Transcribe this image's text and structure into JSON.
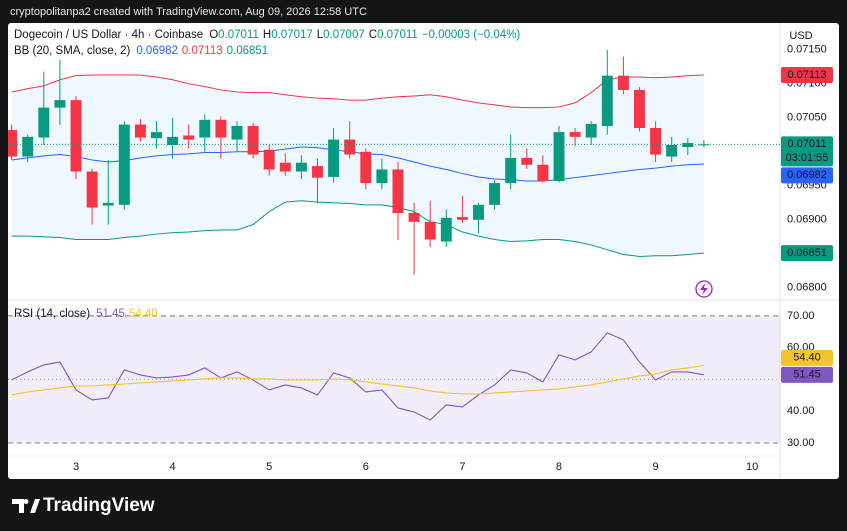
{
  "header": {
    "attribution": "cryptopolitanpa2 created with TradingView.com, Aug 09, 2026 12:58 UTC",
    "branding": "TradingView"
  },
  "chart_data": [
    {
      "type": "candlestick",
      "title": "Dogecoin / US Dollar · 4h · Coinbase",
      "ohlc_labels": [
        "O",
        "H",
        "L",
        "C"
      ],
      "change_label": "−0.00003 (−0.04%)",
      "currency": "USD",
      "countdown": "03:01:55",
      "up_color": "#089981",
      "down_color": "#f23645",
      "x": [
        2.3333,
        2.5,
        2.6667,
        2.8333,
        3,
        3.1667,
        3.3333,
        3.5,
        3.6667,
        3.8333,
        4,
        4.1667,
        4.3333,
        4.5,
        4.6667,
        4.8333,
        5,
        5.1667,
        5.3333,
        5.5,
        5.6667,
        5.8333,
        6,
        6.1667,
        6.3333,
        6.5,
        6.6667,
        6.8333,
        7,
        7.1667,
        7.3333,
        7.5,
        7.6667,
        7.8333,
        8,
        8.1667,
        8.3333,
        8.5,
        8.6667,
        8.8333,
        9,
        9.1667,
        9.3333,
        9.5
      ],
      "open": [
        0.07032,
        0.06993,
        0.07021,
        0.07065,
        0.07076,
        0.06971,
        0.06921,
        0.06922,
        0.0704,
        0.0702,
        0.0701,
        0.07024,
        0.07021,
        0.07047,
        0.07018,
        0.07038,
        0.07003,
        0.06984,
        0.06971,
        0.06979,
        0.06963,
        0.07018,
        0.07,
        0.06954,
        0.06974,
        0.0691,
        0.06897,
        0.06868,
        0.06904,
        0.069,
        0.06922,
        0.06954,
        0.06991,
        0.06981,
        0.06957,
        0.07029,
        0.07021,
        0.07038,
        0.07112,
        0.07091,
        0.07035,
        0.06993,
        0.07007,
        0.07011
      ],
      "high": [
        0.0704,
        0.07025,
        0.07118,
        0.07135,
        0.07082,
        0.06975,
        0.06988,
        0.07045,
        0.07048,
        0.07045,
        0.0705,
        0.0704,
        0.07055,
        0.07052,
        0.07045,
        0.07042,
        0.0701,
        0.06998,
        0.06995,
        0.0699,
        0.07035,
        0.07045,
        0.07005,
        0.0699,
        0.06985,
        0.06925,
        0.06928,
        0.06915,
        0.06935,
        0.06925,
        0.06958,
        0.07025,
        0.07005,
        0.06995,
        0.07038,
        0.07035,
        0.07045,
        0.0715,
        0.0714,
        0.07095,
        0.07045,
        0.07022,
        0.0702,
        0.07017
      ],
      "low": [
        0.06988,
        0.06985,
        0.0701,
        0.0704,
        0.0696,
        0.06893,
        0.06893,
        0.06915,
        0.07015,
        0.07005,
        0.0699,
        0.07005,
        0.07,
        0.0699,
        0.07,
        0.0699,
        0.06965,
        0.06965,
        0.0696,
        0.06925,
        0.06955,
        0.0699,
        0.06945,
        0.06945,
        0.0687,
        0.06819,
        0.0686,
        0.0686,
        0.06895,
        0.0688,
        0.06915,
        0.06945,
        0.06975,
        0.06955,
        0.06955,
        0.07008,
        0.0701,
        0.07025,
        0.07085,
        0.0703,
        0.06985,
        0.06985,
        0.06995,
        0.07007
      ],
      "close": [
        0.06993,
        0.07022,
        0.07065,
        0.07076,
        0.06971,
        0.06918,
        0.06925,
        0.0704,
        0.07021,
        0.07029,
        0.07022,
        0.07018,
        0.07047,
        0.07021,
        0.07038,
        0.06996,
        0.06974,
        0.06971,
        0.06984,
        0.06962,
        0.07018,
        0.06996,
        0.06954,
        0.06974,
        0.0691,
        0.06897,
        0.06871,
        0.06903,
        0.069,
        0.06922,
        0.06954,
        0.06991,
        0.06981,
        0.06957,
        0.07029,
        0.07022,
        0.07041,
        0.07112,
        0.07091,
        0.07035,
        0.06996,
        0.0701,
        0.07013,
        0.07011
      ],
      "xlim": [
        2.296,
        10.288
      ],
      "xticks": [
        3,
        4,
        5,
        6,
        7,
        8,
        9,
        10
      ],
      "ylim": [
        0.06782,
        0.07188
      ],
      "yticks": [
        {
          "value": 0.068,
          "label": "0.06800"
        },
        {
          "value": 0.069,
          "label": "0.06900"
        },
        {
          "value": 0.0695,
          "label": "0.06950"
        },
        {
          "value": 0.0705,
          "label": "0.07050"
        },
        {
          "value": 0.071,
          "label": "0.07100"
        },
        {
          "value": 0.0715,
          "label": "0.07150"
        }
      ],
      "overlay": {
        "title": "BB (20, SMA, close, 2)",
        "fill": "rgba(33,150,243,0.07)",
        "series": [
          {
            "color": "#2962ff",
            "values": [
              0.06988,
              0.06991,
              0.06994,
              0.06996,
              0.06993,
              0.06988,
              0.06985,
              0.06987,
              0.06991,
              0.06994,
              0.06996,
              0.06997,
              0.06999,
              0.06999,
              0.07,
              0.07,
              0.07001,
              0.07004,
              0.07007,
              0.07006,
              0.07003,
              0.07,
              0.06997,
              0.06996,
              0.06991,
              0.06985,
              0.06979,
              0.06974,
              0.06968,
              0.06963,
              0.0696,
              0.06959,
              0.06957,
              0.06957,
              0.06959,
              0.06962,
              0.06965,
              0.06968,
              0.06971,
              0.06974,
              0.06976,
              0.06979,
              0.06981,
              0.06982
            ]
          },
          {
            "color": "#f23645",
            "values": [
              0.07088,
              0.07093,
              0.07097,
              0.07106,
              0.07112,
              0.07113,
              0.07113,
              0.07113,
              0.07113,
              0.0711,
              0.07106,
              0.071,
              0.07096,
              0.07091,
              0.07088,
              0.07087,
              0.07087,
              0.07084,
              0.07081,
              0.07079,
              0.07078,
              0.07076,
              0.07076,
              0.07079,
              0.07081,
              0.07082,
              0.07084,
              0.07081,
              0.07076,
              0.07072,
              0.07069,
              0.07066,
              0.07065,
              0.07065,
              0.07066,
              0.07072,
              0.07087,
              0.07106,
              0.0711,
              0.0711,
              0.07109,
              0.0711,
              0.07112,
              0.07113
            ]
          },
          {
            "color": "#089981",
            "values": [
              0.06876,
              0.06876,
              0.06875,
              0.06874,
              0.06871,
              0.06871,
              0.06871,
              0.06874,
              0.06876,
              0.06879,
              0.06881,
              0.06882,
              0.06884,
              0.06885,
              0.06885,
              0.06893,
              0.06912,
              0.06926,
              0.06928,
              0.06926,
              0.06925,
              0.06924,
              0.06922,
              0.06922,
              0.06918,
              0.06912,
              0.06897,
              0.06893,
              0.06882,
              0.06876,
              0.06871,
              0.06868,
              0.06869,
              0.06871,
              0.06871,
              0.06868,
              0.06863,
              0.06856,
              0.06849,
              0.06846,
              0.06847,
              0.06847,
              0.06849,
              0.06851
            ]
          }
        ]
      }
    },
    {
      "type": "line",
      "title": "RSI (14, close)",
      "band": [
        30,
        70
      ],
      "midline": 50,
      "band_fill": "rgba(126,87,194,0.1)",
      "series": [
        {
          "color": "#7e57c2",
          "values": [
            49.84,
            52.36,
            54.57,
            55.51,
            46.69,
            43.54,
            44.17,
            52.99,
            51.42,
            50.47,
            50.79,
            51.42,
            53.62,
            50.47,
            52.36,
            49.84,
            46.69,
            48.27,
            47.32,
            45.12,
            52.05,
            50.47,
            46.06,
            46.69,
            41.02,
            39.76,
            37.24,
            41.97,
            41.34,
            45.12,
            48.27,
            52.99,
            52.05,
            49.21,
            57.72,
            56.14,
            58.66,
            64.65,
            62.44,
            55.51,
            49.84,
            52.36,
            52.36,
            51.45
          ]
        },
        {
          "color": "#f5c230",
          "values": [
            45.12,
            46.06,
            46.69,
            47.32,
            47.95,
            47.95,
            48.27,
            48.58,
            48.9,
            49.21,
            49.53,
            49.84,
            50.16,
            50.47,
            50.47,
            50.16,
            50.16,
            49.84,
            49.84,
            49.84,
            50.16,
            49.84,
            49.21,
            48.58,
            47.95,
            47.32,
            46.38,
            45.75,
            45.43,
            45.43,
            45.75,
            46.06,
            46.38,
            46.69,
            47.01,
            47.64,
            48.27,
            49.21,
            50.16,
            51.1,
            51.73,
            52.99,
            53.62,
            54.4
          ],
          "value_labels": [
            null,
            null,
            null,
            null,
            null,
            null,
            null,
            null,
            null,
            null,
            null,
            null,
            null,
            null,
            null,
            null,
            null,
            null,
            null,
            null,
            null,
            null,
            null,
            null,
            null,
            null,
            null,
            null,
            null,
            null,
            null,
            null,
            null,
            null,
            null,
            null,
            null,
            null,
            null,
            null,
            null,
            null,
            null,
            "54.40"
          ]
        }
      ],
      "ylim": [
        25.9,
        75.0
      ],
      "yticks": [
        {
          "value": 30,
          "label": "30.00"
        },
        {
          "value": 40,
          "label": "40.00"
        },
        {
          "value": 60,
          "label": "60.00"
        },
        {
          "value": 70,
          "label": "70.00"
        }
      ]
    }
  ]
}
